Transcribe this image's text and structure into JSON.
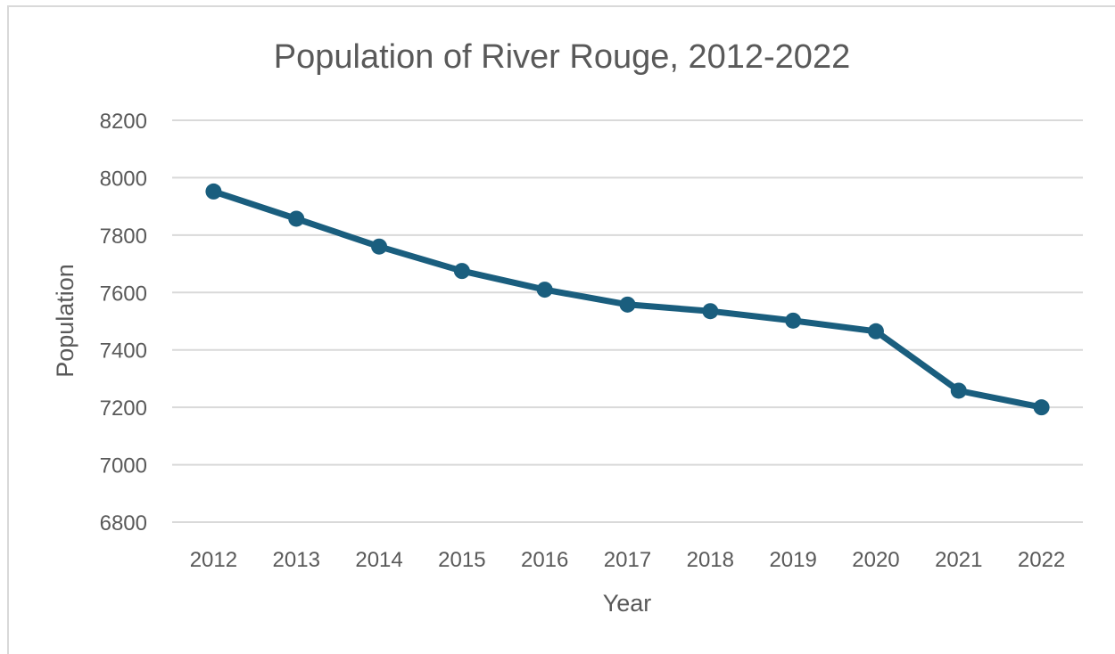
{
  "chart_data": {
    "type": "line",
    "title": "Population of River Rouge, 2012-2022",
    "xlabel": "Year",
    "ylabel": "Population",
    "categories": [
      "2012",
      "2013",
      "2014",
      "2015",
      "2016",
      "2017",
      "2018",
      "2019",
      "2020",
      "2021",
      "2022"
    ],
    "series": [
      {
        "values": [
          7952,
          7857,
          7760,
          7675,
          7610,
          7558,
          7535,
          7502,
          7465,
          7258,
          7200
        ],
        "color": "#1a5e7e"
      }
    ],
    "ylim": [
      6800,
      8200
    ],
    "yticks": [
      "6800",
      "7000",
      "7200",
      "7400",
      "7600",
      "7800",
      "8000",
      "8200"
    ],
    "grid": true,
    "markers": true
  }
}
